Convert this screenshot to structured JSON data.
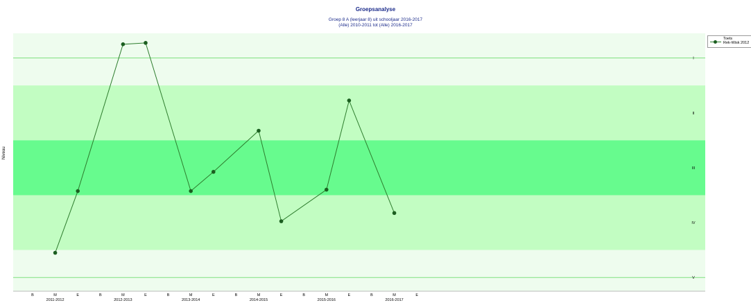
{
  "header": {
    "title": "Groepsanalyse",
    "subtitle1": "Groep 8 A (leerjaar 8) uit schooljaar 2016-2017",
    "subtitle2": "(Alle) 2010-2011 tot (Alle) 2016-2017"
  },
  "legend": {
    "title": "Toets",
    "series": "Rek-Wisk 2012"
  },
  "colors": {
    "band_light": "#eefcee",
    "band_mid": "#c2fdc2",
    "band_dark": "#67fb8e",
    "line": "#2e7d2e",
    "marker": "#1b5e20",
    "title": "#1a2a8a"
  },
  "chart_data": {
    "type": "line",
    "title": "Groepsanalyse",
    "ylabel": "Niveau",
    "xlabel": "",
    "ylim": [
      0,
      9.4
    ],
    "grid": false,
    "legend_position": "top-right",
    "level_labels": [
      "I",
      "II",
      "III",
      "IV",
      "V"
    ],
    "level_centers": [
      8.5,
      6.5,
      4.5,
      2.5,
      0.5
    ],
    "x_ticks": [
      "B",
      "M",
      "E",
      "B",
      "M",
      "E",
      "B",
      "M",
      "E",
      "B",
      "M",
      "E",
      "B",
      "M",
      "E",
      "B",
      "M",
      "E"
    ],
    "years": [
      "2011-2012",
      "2012-2013",
      "2013-2014",
      "2014-2015",
      "2015-2016",
      "2016-2017"
    ],
    "series": [
      {
        "name": "Rek-Wisk 2012",
        "points": [
          {
            "x": "2011-2012 M",
            "y": 1.4
          },
          {
            "x": "2011-2012 E",
            "y": 3.65
          },
          {
            "x": "2012-2013 M",
            "y": 9.0
          },
          {
            "x": "2012-2013 E",
            "y": 9.05
          },
          {
            "x": "2013-2014 M",
            "y": 3.65
          },
          {
            "x": "2013-2014 E",
            "y": 4.35
          },
          {
            "x": "2014-2015 M",
            "y": 5.85
          },
          {
            "x": "2014-2015 E",
            "y": 2.55
          },
          {
            "x": "2015-2016 M",
            "y": 3.7
          },
          {
            "x": "2015-2016 E",
            "y": 6.95
          },
          {
            "x": "2016-2017 M",
            "y": 2.85
          }
        ]
      }
    ]
  }
}
